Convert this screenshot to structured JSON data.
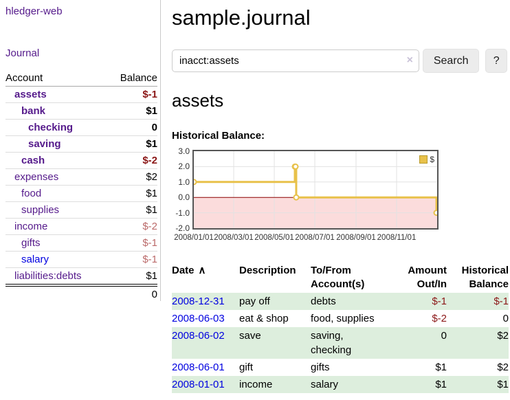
{
  "brand": "hledger-web",
  "sidebar": {
    "journal_link": "Journal",
    "accounts": {
      "headers": {
        "account": "Account",
        "balance": "Balance"
      },
      "rows": [
        {
          "name": "assets",
          "balance": "$-1",
          "depth": 1
        },
        {
          "name": "bank",
          "balance": "$1",
          "depth": 2
        },
        {
          "name": "checking",
          "balance": "0",
          "depth": 3
        },
        {
          "name": "saving",
          "balance": "$1",
          "depth": 3
        },
        {
          "name": "cash",
          "balance": "$-2",
          "depth": 2
        },
        {
          "name": "expenses",
          "balance": "$2",
          "depth": 1
        },
        {
          "name": "food",
          "balance": "$1",
          "depth": 2
        },
        {
          "name": "supplies",
          "balance": "$1",
          "depth": 2
        },
        {
          "name": "income",
          "balance": "$-2",
          "depth": 1
        },
        {
          "name": "gifts",
          "balance": "$-1",
          "depth": 2
        },
        {
          "name": "salary",
          "balance": "$-1",
          "depth": 2
        },
        {
          "name": "liabilities:debts",
          "balance": "$1",
          "depth": 1
        }
      ],
      "total": "0"
    }
  },
  "main": {
    "title": "sample.journal",
    "search": {
      "value": "inacct:assets",
      "clear_icon": "×",
      "button": "Search",
      "help": "?"
    },
    "account_heading": "assets",
    "chart_label": "Historical Balance:"
  },
  "chart_data": {
    "type": "line",
    "step": true,
    "title": "Historical Balance:",
    "series": [
      {
        "name": "$",
        "points": [
          [
            "2008-01-01",
            1
          ],
          [
            "2008-06-01",
            2
          ],
          [
            "2008-06-02",
            2
          ],
          [
            "2008-06-03",
            0
          ],
          [
            "2008-12-31",
            -1
          ]
        ]
      }
    ],
    "x_ticks": [
      "2008/01/01",
      "2008/03/01",
      "2008/05/01",
      "2008/07/01",
      "2008/09/01",
      "2008/11/01"
    ],
    "y_ticks": [
      "3.0",
      "2.0",
      "1.0",
      "0.0",
      "-1.0",
      "-2.0"
    ],
    "y_grid": [
      2,
      1,
      -1
    ],
    "ylim": [
      -2,
      3
    ],
    "xlim": [
      "2008-01-01",
      "2009-01-01"
    ],
    "legend": {
      "label": "$",
      "position": "top-right"
    },
    "line_color": "#e8c14a",
    "marker_fill": "#ffffff",
    "negative_region_color": "#fbdcdc",
    "zero_line_color": "#8b0000",
    "grid": true
  },
  "register": {
    "headers": {
      "date": "Date",
      "sort_icon": "∧",
      "description": "Description",
      "accounts": "To/From Account(s)",
      "amount": "Amount Out/In",
      "balance": "Historical Balance"
    },
    "rows": [
      {
        "date": "2008-12-31",
        "description": "pay off",
        "accounts": "debts",
        "amount": "$-1",
        "balance": "$-1"
      },
      {
        "date": "2008-06-03",
        "description": "eat & shop",
        "accounts": "food, supplies",
        "amount": "$-2",
        "balance": "0"
      },
      {
        "date": "2008-06-02",
        "description": "save",
        "accounts": "saving, checking",
        "amount": "0",
        "balance": "$2"
      },
      {
        "date": "2008-06-01",
        "description": "gift",
        "accounts": "gifts",
        "amount": "$1",
        "balance": "$2"
      },
      {
        "date": "2008-01-01",
        "description": "income",
        "accounts": "salary",
        "amount": "$1",
        "balance": "$1"
      }
    ]
  }
}
